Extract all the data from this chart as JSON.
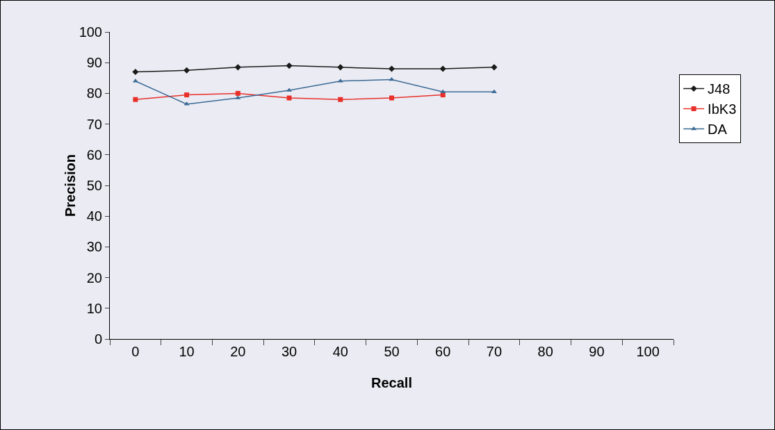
{
  "chart_data": {
    "type": "line",
    "xlabel": "Recall",
    "ylabel": "Precision",
    "categories": [
      "0",
      "10",
      "20",
      "30",
      "40",
      "50",
      "60",
      "70",
      "80",
      "90",
      "100"
    ],
    "ylim": [
      0,
      100
    ],
    "yticks": [
      0,
      10,
      20,
      30,
      40,
      50,
      60,
      70,
      80,
      90,
      100
    ],
    "grid": false,
    "legend": "right",
    "series": [
      {
        "name": "J48",
        "color": "#1a1a1a",
        "marker": "diamond",
        "values": [
          87,
          87.5,
          88.5,
          89,
          88.5,
          88,
          88,
          88.5,
          null,
          null,
          null
        ]
      },
      {
        "name": "IbK3",
        "color": "#e8302a",
        "marker": "square",
        "values": [
          78,
          79.5,
          80,
          78.5,
          78,
          78.5,
          79.5,
          null,
          null,
          null,
          null
        ]
      },
      {
        "name": "DA",
        "color": "#3a6a94",
        "marker": "triangle",
        "values": [
          84,
          76.5,
          78.5,
          81,
          84,
          84.5,
          80.5,
          80.5,
          null,
          null,
          null
        ]
      }
    ]
  }
}
